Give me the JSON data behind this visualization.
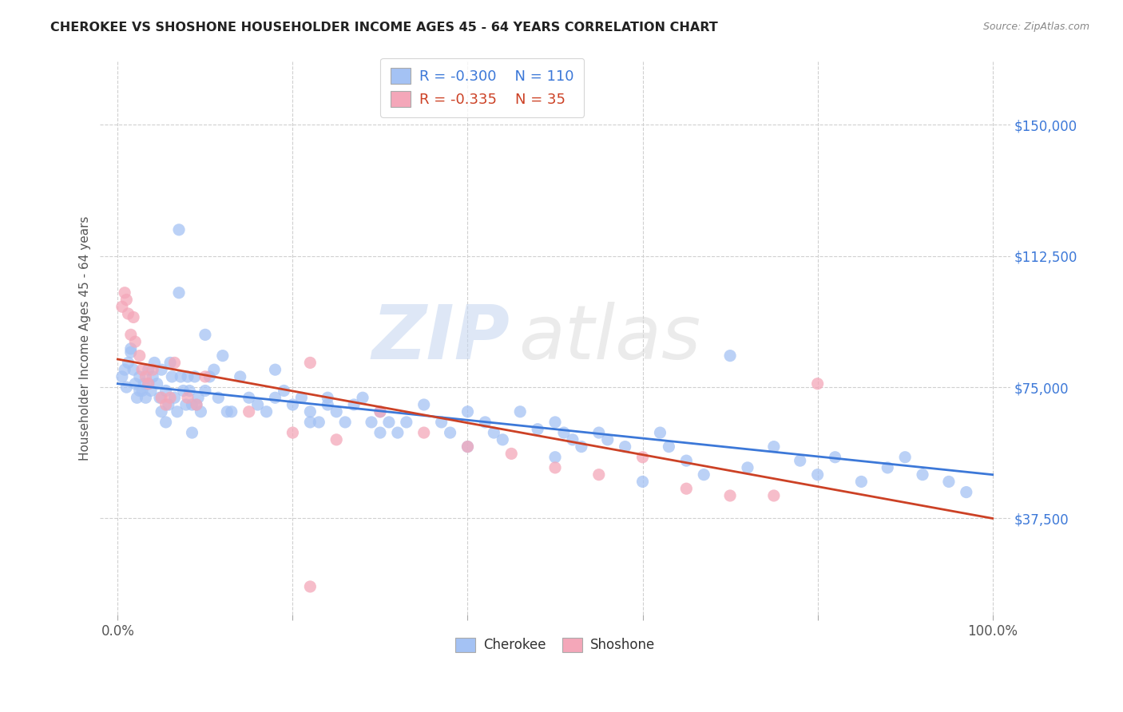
{
  "title": "CHEROKEE VS SHOSHONE HOUSEHOLDER INCOME AGES 45 - 64 YEARS CORRELATION CHART",
  "source": "Source: ZipAtlas.com",
  "ylabel": "Householder Income Ages 45 - 64 years",
  "yticks": [
    37500,
    75000,
    112500,
    150000
  ],
  "ytick_labels": [
    "$37,500",
    "$75,000",
    "$112,500",
    "$150,000"
  ],
  "cherokee_color": "#a4c2f4",
  "shoshone_color": "#f4a7b9",
  "cherokee_line_color": "#3c78d8",
  "shoshone_line_color": "#cc4125",
  "cherokee_R": -0.3,
  "cherokee_N": 110,
  "shoshone_R": -0.335,
  "shoshone_N": 35,
  "watermark_zip": "ZIP",
  "watermark_atlas": "atlas",
  "background_color": "#ffffff",
  "grid_color": "#d0d0d0",
  "xlim": [
    -0.02,
    1.02
  ],
  "ylim": [
    10000,
    168000
  ],
  "cherokee_x": [
    0.005,
    0.008,
    0.01,
    0.012,
    0.015,
    0.018,
    0.02,
    0.022,
    0.025,
    0.028,
    0.03,
    0.032,
    0.035,
    0.038,
    0.04,
    0.042,
    0.045,
    0.048,
    0.05,
    0.055,
    0.058,
    0.06,
    0.062,
    0.065,
    0.068,
    0.07,
    0.072,
    0.075,
    0.078,
    0.08,
    0.082,
    0.085,
    0.088,
    0.09,
    0.092,
    0.095,
    0.1,
    0.105,
    0.11,
    0.115,
    0.12,
    0.13,
    0.14,
    0.15,
    0.16,
    0.17,
    0.18,
    0.19,
    0.2,
    0.21,
    0.22,
    0.23,
    0.24,
    0.25,
    0.26,
    0.27,
    0.28,
    0.29,
    0.3,
    0.31,
    0.32,
    0.33,
    0.35,
    0.37,
    0.38,
    0.4,
    0.42,
    0.43,
    0.44,
    0.46,
    0.48,
    0.5,
    0.51,
    0.52,
    0.53,
    0.55,
    0.56,
    0.58,
    0.6,
    0.62,
    0.63,
    0.65,
    0.67,
    0.7,
    0.72,
    0.75,
    0.78,
    0.8,
    0.82,
    0.85,
    0.88,
    0.9,
    0.92,
    0.95,
    0.97,
    0.24,
    0.18,
    0.1,
    0.07,
    0.035,
    0.05,
    0.015,
    0.025,
    0.055,
    0.085,
    0.125,
    0.22,
    0.3,
    0.4,
    0.5
  ],
  "cherokee_y": [
    78000,
    80000,
    75000,
    82000,
    85000,
    80000,
    76000,
    72000,
    78000,
    74000,
    76000,
    72000,
    80000,
    74000,
    78000,
    82000,
    76000,
    72000,
    80000,
    74000,
    70000,
    82000,
    78000,
    72000,
    68000,
    120000,
    78000,
    74000,
    70000,
    78000,
    74000,
    70000,
    78000,
    70000,
    72000,
    68000,
    74000,
    78000,
    80000,
    72000,
    84000,
    68000,
    78000,
    72000,
    70000,
    68000,
    72000,
    74000,
    70000,
    72000,
    68000,
    65000,
    70000,
    68000,
    65000,
    70000,
    72000,
    65000,
    68000,
    65000,
    62000,
    65000,
    70000,
    65000,
    62000,
    68000,
    65000,
    62000,
    60000,
    68000,
    63000,
    65000,
    62000,
    60000,
    58000,
    62000,
    60000,
    58000,
    48000,
    62000,
    58000,
    54000,
    50000,
    84000,
    52000,
    58000,
    54000,
    50000,
    55000,
    48000,
    52000,
    55000,
    50000,
    48000,
    45000,
    72000,
    80000,
    90000,
    102000,
    76000,
    68000,
    86000,
    74000,
    65000,
    62000,
    68000,
    65000,
    62000,
    58000,
    55000
  ],
  "shoshone_x": [
    0.005,
    0.008,
    0.01,
    0.012,
    0.015,
    0.018,
    0.02,
    0.025,
    0.028,
    0.032,
    0.035,
    0.04,
    0.05,
    0.055,
    0.06,
    0.065,
    0.08,
    0.09,
    0.1,
    0.15,
    0.2,
    0.22,
    0.25,
    0.3,
    0.35,
    0.4,
    0.45,
    0.5,
    0.55,
    0.6,
    0.65,
    0.7,
    0.75,
    0.8,
    0.22
  ],
  "shoshone_y": [
    98000,
    102000,
    100000,
    96000,
    90000,
    95000,
    88000,
    84000,
    80000,
    78000,
    76000,
    80000,
    72000,
    70000,
    72000,
    82000,
    72000,
    70000,
    78000,
    68000,
    62000,
    82000,
    60000,
    68000,
    62000,
    58000,
    56000,
    52000,
    50000,
    55000,
    46000,
    44000,
    44000,
    76000,
    18000
  ]
}
